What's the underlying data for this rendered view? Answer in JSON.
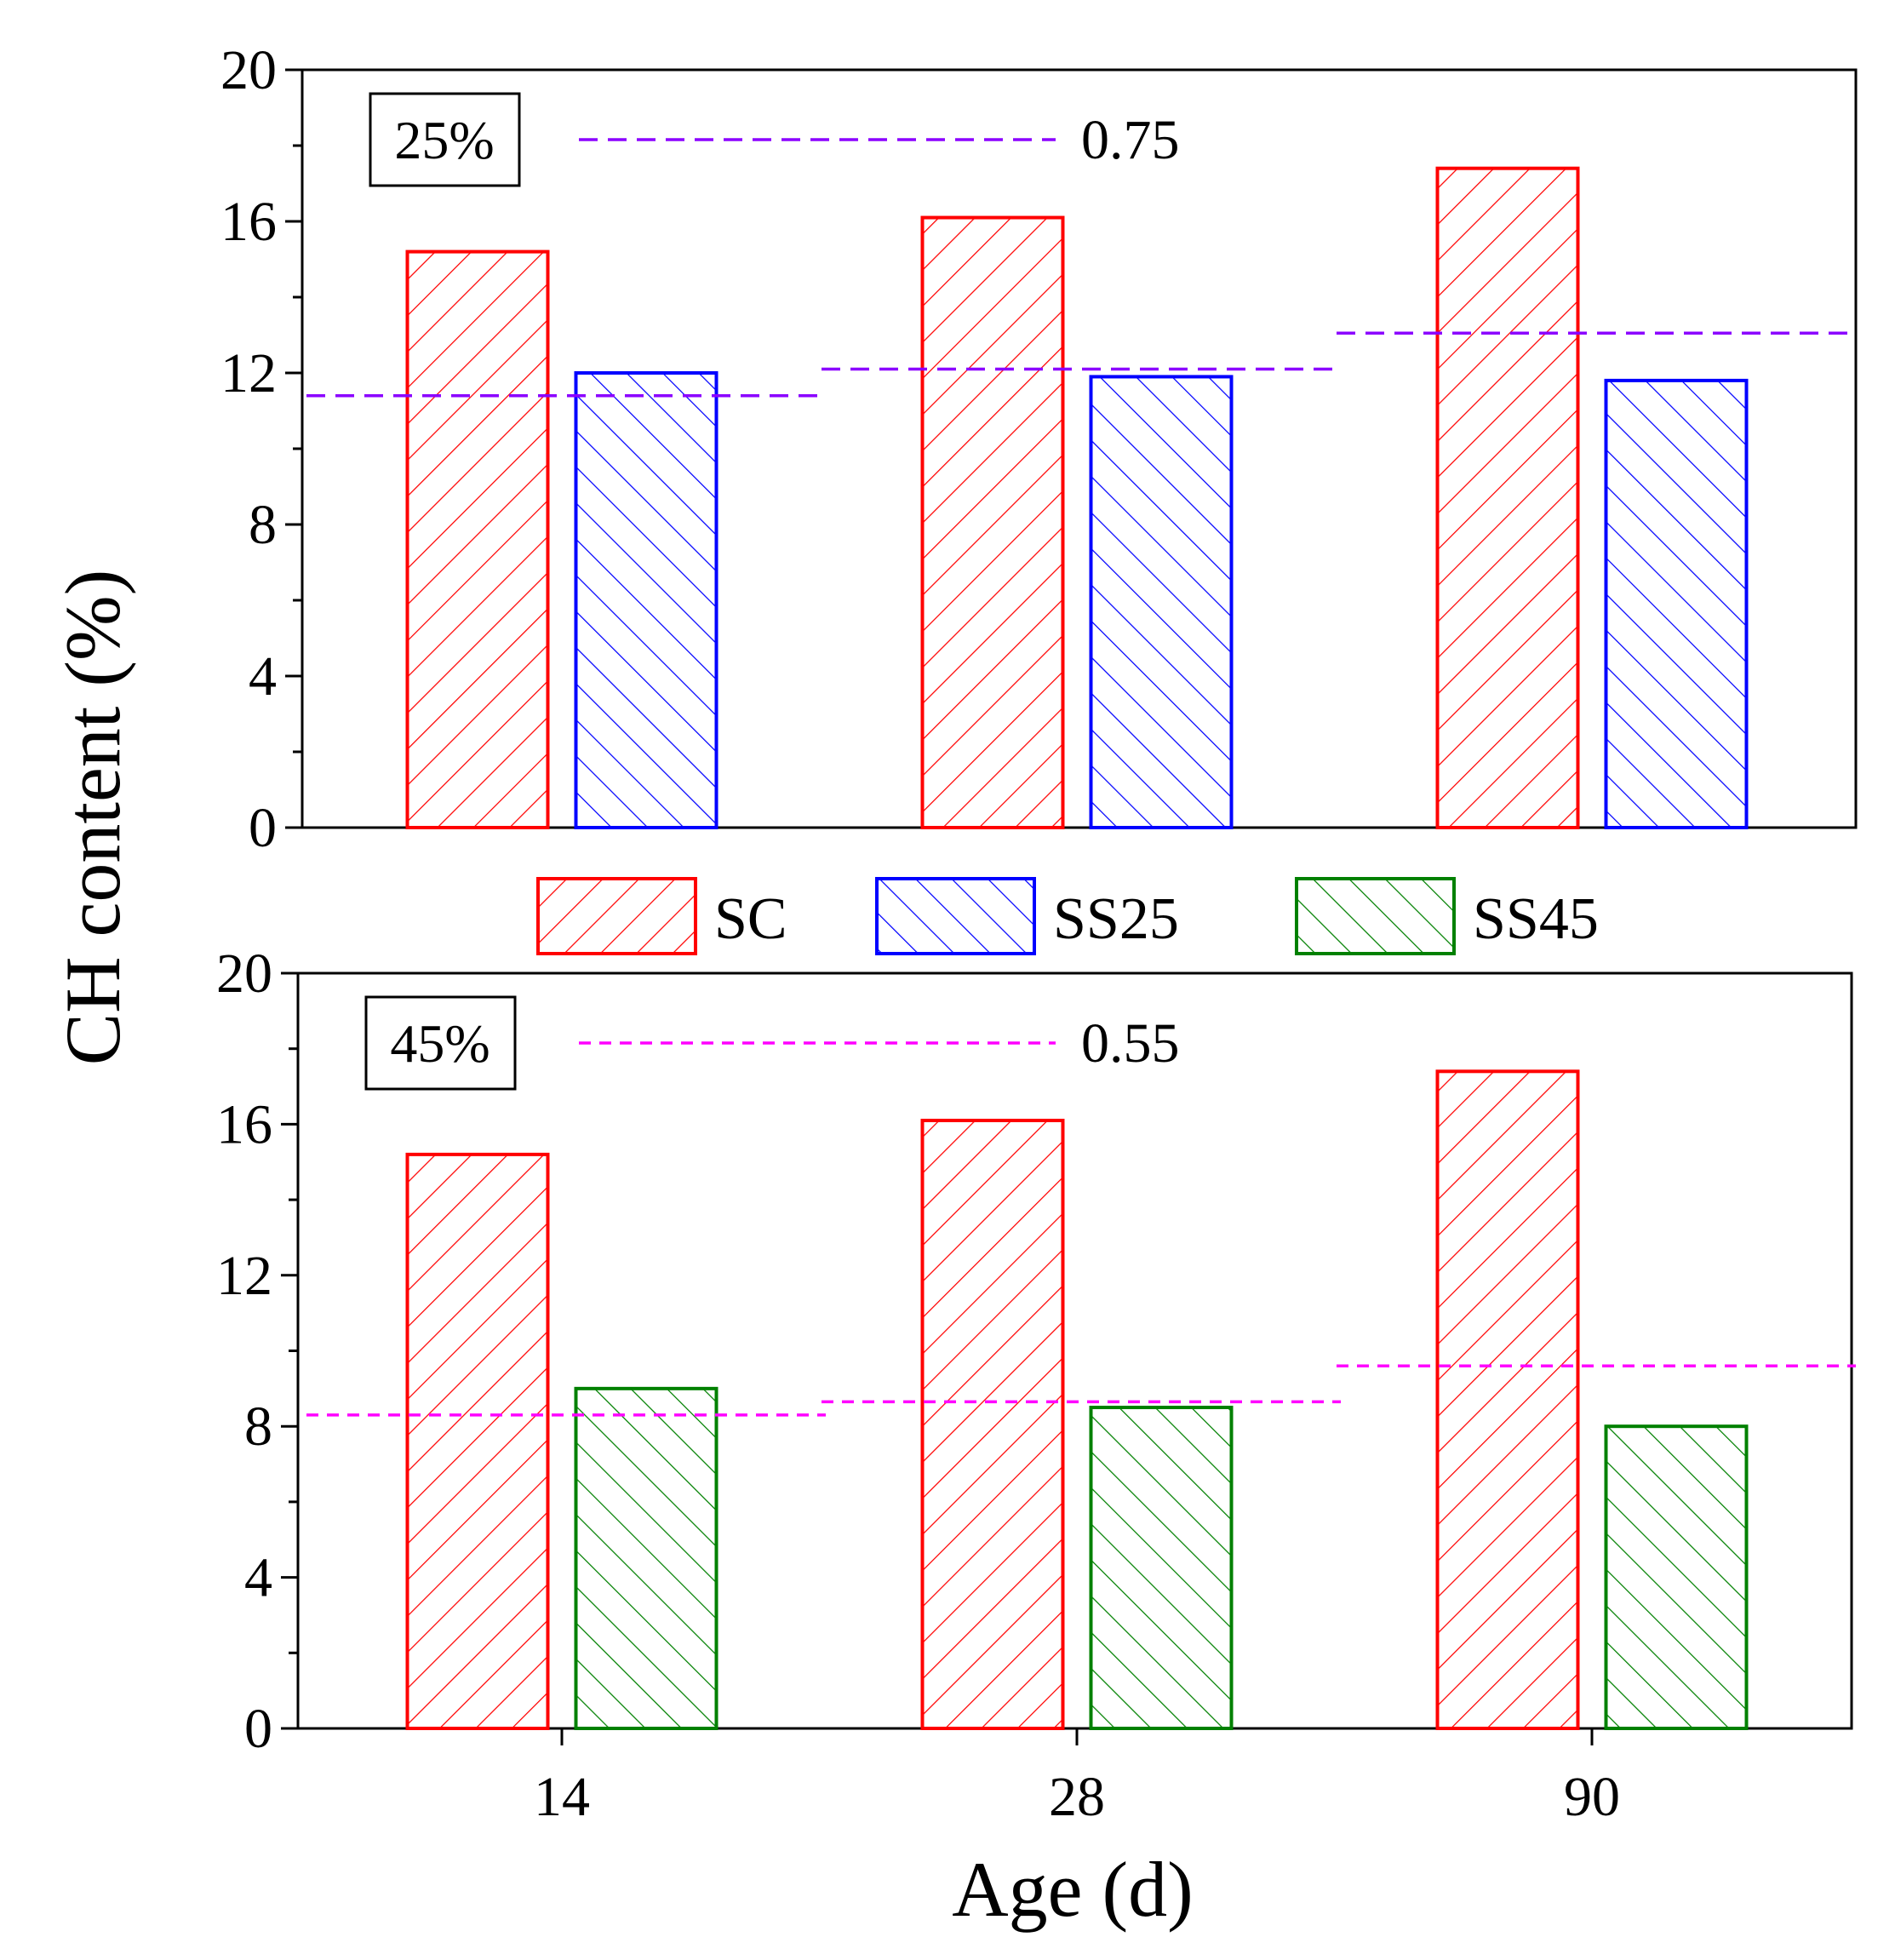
{
  "chart_data": {
    "type": "bar",
    "ylabel": "CH content (%)",
    "xlabel": "Age (d)",
    "categories": [
      "14",
      "28",
      "90"
    ],
    "ylim": [
      0,
      20
    ],
    "yticks": [
      "0",
      "4",
      "8",
      "12",
      "16",
      "20"
    ],
    "legend": {
      "placement": "between panels",
      "entries": [
        {
          "name": "SC",
          "color": "#ff0000",
          "hatch": "forward"
        },
        {
          "name": "SS25",
          "color": "#0000ff",
          "hatch": "backward"
        },
        {
          "name": "SS45",
          "color": "#008000",
          "hatch": "backward"
        }
      ]
    },
    "panels": [
      {
        "tag": "25%",
        "ref_label": "0.75",
        "ref_color": "#8b00ff",
        "series": [
          {
            "name": "SC",
            "color": "#ff0000",
            "hatch": "forward",
            "values": [
              15.2,
              16.1,
              17.4
            ]
          },
          {
            "name": "SS25",
            "color": "#0000ff",
            "hatch": "backward",
            "values": [
              12.0,
              11.9,
              11.8
            ]
          }
        ],
        "reference_values": [
          11.4,
          12.1,
          13.05
        ]
      },
      {
        "tag": "45%",
        "ref_label": "0.55",
        "ref_color": "#ff00ff",
        "series": [
          {
            "name": "SC",
            "color": "#ff0000",
            "hatch": "forward",
            "values": [
              15.2,
              16.1,
              17.4
            ]
          },
          {
            "name": "SS45",
            "color": "#008000",
            "hatch": "backward",
            "values": [
              9.0,
              8.5,
              8.0
            ]
          }
        ],
        "reference_values": [
          8.3,
          8.65,
          9.6
        ]
      }
    ]
  }
}
